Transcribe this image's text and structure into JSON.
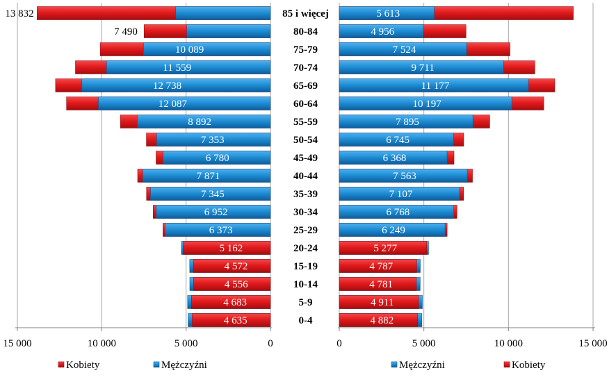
{
  "chart_data": {
    "type": "bar",
    "orientation": "horizontal",
    "subtype": "population-pyramid",
    "categories": [
      "85 i więcej",
      "80-84",
      "75-79",
      "70-74",
      "65-69",
      "60-64",
      "55-59",
      "50-54",
      "45-49",
      "40-44",
      "35-39",
      "30-34",
      "25-29",
      "20-24",
      "15-19",
      "10-14",
      "5-9",
      "0-4"
    ],
    "women": {
      "name": "Kobiety",
      "values": [
        13832,
        7490,
        10089,
        11559,
        12738,
        12087,
        8892,
        7353,
        6780,
        7871,
        7345,
        6952,
        6373,
        5162,
        4572,
        4556,
        4683,
        4635
      ],
      "labels": [
        "13 832",
        "7 490",
        "10 089",
        "11 559",
        "12 738",
        "12 087",
        "8 892",
        "7 353",
        "6 780",
        "7 871",
        "7 345",
        "6 952",
        "6 373",
        "5 162",
        "4 572",
        "4 556",
        "4 683",
        "4 635"
      ]
    },
    "men": {
      "name": "Mężczyźni",
      "values": [
        5613,
        4956,
        7524,
        9711,
        11177,
        10197,
        7895,
        6745,
        6368,
        7563,
        7107,
        6768,
        6249,
        5277,
        4787,
        4781,
        4911,
        4882
      ],
      "labels": [
        "5 613",
        "4 956",
        "7 524",
        "9 711",
        "11 177",
        "10 197",
        "7 895",
        "6 745",
        "6 368",
        "7 563",
        "7 107",
        "6 768",
        "6 249",
        "5 277",
        "4 787",
        "4 781",
        "4 911",
        "4 882"
      ]
    },
    "left_panel": {
      "axis_ticks": [
        15000,
        10000,
        5000,
        0
      ],
      "axis_tick_labels": [
        "15 000",
        "10 000",
        "5 000",
        "0"
      ],
      "xlim": [
        0,
        15000
      ],
      "legend": [
        "Kobiety",
        "Mężczyźni"
      ]
    },
    "right_panel": {
      "axis_ticks": [
        0,
        5000,
        10000,
        15000
      ],
      "axis_tick_labels": [
        "0",
        "5 000",
        "10 000",
        "15 000"
      ],
      "xlim": [
        0,
        15000
      ],
      "legend": [
        "Mężczyźni",
        "Kobiety"
      ]
    },
    "gridlines": "vertical",
    "legend_position": "bottom",
    "colors": {
      "women": "#e41a1c",
      "women_dark": "#9e0b0e",
      "men": "#1f8fd6",
      "men_dark": "#0b5a9a",
      "grid": "#999999"
    }
  }
}
